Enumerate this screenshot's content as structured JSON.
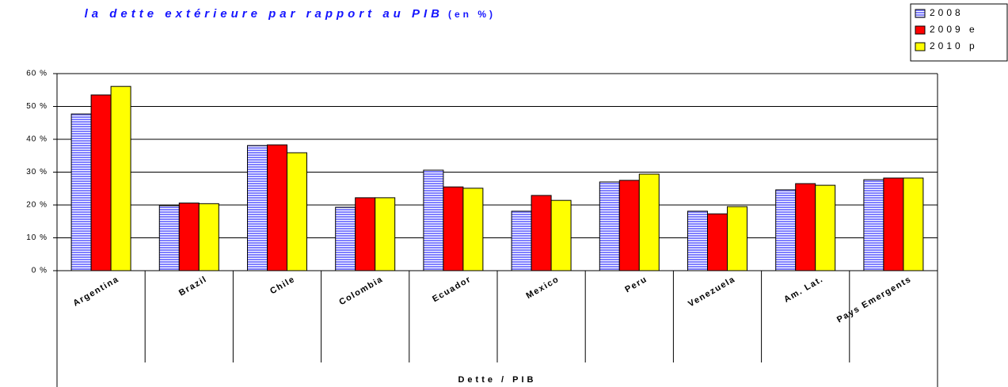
{
  "chart_data": {
    "type": "bar",
    "title": "la dette extérieure par rapport au PIB",
    "subtitle": "(en %)",
    "x_label": "Dette / PIB",
    "categories": [
      "Argentina",
      "Brazil",
      "Chile",
      "Colombia",
      "Ecuador",
      "Mexico",
      "Peru",
      "Venezuela",
      "Am. Lat.",
      "Pays Emergents"
    ],
    "series": [
      {
        "name": "2008",
        "color": "#8080ff",
        "pattern": "horizontal-stripes",
        "values": [
          47.7,
          19.8,
          38.1,
          19.3,
          30.6,
          18.1,
          27.0,
          18.1,
          24.6,
          27.7
        ]
      },
      {
        "name": "2009 e",
        "color": "#ff0000",
        "values": [
          53.5,
          20.6,
          38.3,
          22.2,
          25.5,
          22.9,
          27.5,
          17.3,
          26.5,
          28.2
        ]
      },
      {
        "name": "2010 p",
        "color": "#ffff00",
        "values": [
          56.1,
          20.4,
          35.9,
          22.2,
          25.1,
          21.4,
          29.4,
          19.5,
          26.0,
          28.2
        ]
      }
    ],
    "ylim": [
      0,
      60
    ],
    "yticks": [
      {
        "value": 0,
        "label": "0 %"
      },
      {
        "value": 10,
        "label": "10 %"
      },
      {
        "value": 20,
        "label": "20 %"
      },
      {
        "value": 30,
        "label": "30 %"
      },
      {
        "value": 40,
        "label": "40 %"
      },
      {
        "value": 50,
        "label": "50 %"
      },
      {
        "value": 60,
        "label": "60 %"
      }
    ],
    "grid": true,
    "legend": "top-right"
  }
}
